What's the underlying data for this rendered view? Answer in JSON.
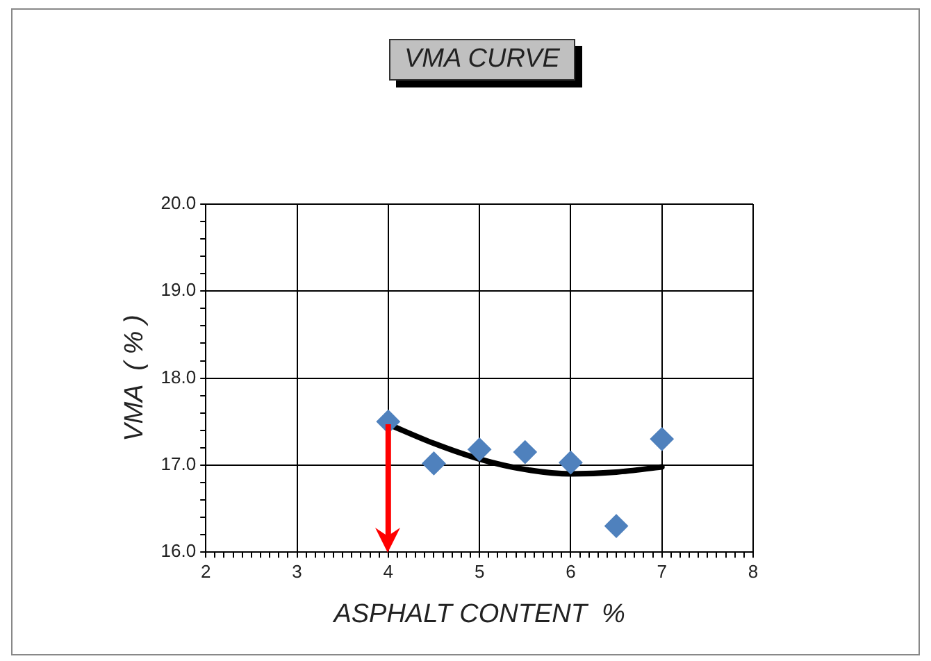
{
  "chart_data": {
    "type": "scatter",
    "title": "VMA CURVE",
    "xlabel": "ASPHALT CONTENT  %",
    "ylabel": "VMA  ( % )",
    "xlim": [
      2,
      8
    ],
    "ylim": [
      16,
      20
    ],
    "xticks": [
      2,
      {
        "value": 2.1,
        "label": null
      },
      {
        "value": 2.2,
        "label": null
      },
      {
        "value": 2.3,
        "label": null
      },
      {
        "value": 2.4,
        "label": null
      },
      {
        "value": 2.5,
        "label": null
      },
      {
        "value": 2.6,
        "label": null
      },
      {
        "value": 2.7,
        "label": null
      },
      {
        "value": 2.8,
        "label": null
      },
      {
        "value": 2.9,
        "label": null
      },
      3,
      {
        "value": 3.1,
        "label": null
      },
      {
        "value": 3.2,
        "label": null
      },
      {
        "value": 3.3,
        "label": null
      },
      {
        "value": 3.4,
        "label": null
      },
      {
        "value": 3.5,
        "label": null
      },
      {
        "value": 3.6,
        "label": null
      },
      {
        "value": 3.7,
        "label": null
      },
      {
        "value": 3.8,
        "label": null
      },
      {
        "value": 3.9,
        "label": null
      },
      4,
      {
        "value": 4.1,
        "label": null
      },
      {
        "value": 4.2,
        "label": null
      },
      {
        "value": 4.3,
        "label": null
      },
      {
        "value": 4.4,
        "label": null
      },
      {
        "value": 4.5,
        "label": null
      },
      {
        "value": 4.6,
        "label": null
      },
      {
        "value": 4.7,
        "label": null
      },
      {
        "value": 4.8,
        "label": null
      },
      {
        "value": 4.9,
        "label": null
      },
      5,
      {
        "value": 5.1,
        "label": null
      },
      {
        "value": 5.2,
        "label": null
      },
      {
        "value": 5.3,
        "label": null
      },
      {
        "value": 5.4,
        "label": null
      },
      {
        "value": 5.5,
        "label": null
      },
      {
        "value": 5.6,
        "label": null
      },
      {
        "value": 5.7,
        "label": null
      },
      {
        "value": 5.8,
        "label": null
      },
      {
        "value": 5.9,
        "label": null
      },
      6,
      {
        "value": 6.1,
        "label": null
      },
      {
        "value": 6.2,
        "label": null
      },
      {
        "value": 6.3,
        "label": null
      },
      {
        "value": 6.4,
        "label": null
      },
      {
        "value": 6.5,
        "label": null
      },
      {
        "value": 6.6,
        "label": null
      },
      {
        "value": 6.7,
        "label": null
      },
      {
        "value": 6.8,
        "label": null
      },
      {
        "value": 6.9,
        "label": null
      },
      7,
      {
        "value": 7.1,
        "label": null
      },
      {
        "value": 7.2,
        "label": null
      },
      {
        "value": 7.3,
        "label": null
      },
      {
        "value": 7.4,
        "label": null
      },
      {
        "value": 7.5,
        "label": null
      },
      {
        "value": 7.6,
        "label": null
      },
      {
        "value": 7.7,
        "label": null
      },
      {
        "value": 7.8,
        "label": null
      },
      {
        "value": 7.9,
        "label": null
      },
      8
    ],
    "yticks": [
      {
        "value": 16,
        "label": "16.0"
      },
      {
        "value": 16.2,
        "label": null
      },
      {
        "value": 16.4,
        "label": null
      },
      {
        "value": 16.6,
        "label": null
      },
      {
        "value": 16.8,
        "label": null
      },
      {
        "value": 17,
        "label": "17.0"
      },
      {
        "value": 17.2,
        "label": null
      },
      {
        "value": 17.4,
        "label": null
      },
      {
        "value": 17.6,
        "label": null
      },
      {
        "value": 17.8,
        "label": null
      },
      {
        "value": 18,
        "label": "18.0"
      },
      {
        "value": 18.2,
        "label": null
      },
      {
        "value": 18.4,
        "label": null
      },
      {
        "value": 18.6,
        "label": null
      },
      {
        "value": 18.8,
        "label": null
      },
      {
        "value": 19,
        "label": "19.0"
      },
      {
        "value": 19.2,
        "label": null
      },
      {
        "value": 19.4,
        "label": null
      },
      {
        "value": 19.6,
        "label": null
      },
      {
        "value": 19.8,
        "label": null
      },
      {
        "value": 20,
        "label": "20.0"
      }
    ],
    "grid": true,
    "legend": false,
    "marker": "diamond",
    "series": [
      {
        "type": "scatter",
        "color": "#4f81bd",
        "x": [
          4,
          4.5,
          5,
          5.5,
          6,
          6.5,
          7
        ],
        "values": [
          17.5,
          17.02,
          17.18,
          17.15,
          17.03,
          16.3,
          17.3
        ]
      },
      {
        "type": "line",
        "color": "#000000",
        "marker": "none",
        "x": [
          4,
          4.5,
          5,
          5.5,
          6,
          6.5,
          7
        ],
        "values": [
          17.47,
          17.25,
          17.07,
          16.95,
          16.9,
          16.92,
          16.98
        ]
      }
    ],
    "ref_lines": [
      {
        "axis": "x",
        "value": 4,
        "color": "#ff0000"
      }
    ]
  }
}
